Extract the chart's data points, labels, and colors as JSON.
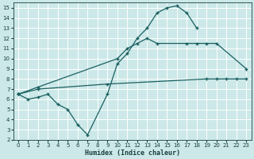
{
  "background_color": "#cce8e8",
  "grid_color": "#ffffff",
  "line_color": "#1a6060",
  "xlabel": "Humidex (Indice chaleur)",
  "xlim": [
    -0.5,
    23.5
  ],
  "ylim": [
    2,
    15.5
  ],
  "xticks": [
    0,
    1,
    2,
    3,
    4,
    5,
    6,
    7,
    8,
    9,
    10,
    11,
    12,
    13,
    14,
    15,
    16,
    17,
    18,
    19,
    20,
    21,
    22,
    23
  ],
  "yticks": [
    2,
    3,
    4,
    5,
    6,
    7,
    8,
    9,
    10,
    11,
    12,
    13,
    14,
    15
  ],
  "line1_x": [
    0,
    1,
    2,
    3,
    4,
    5,
    6,
    7,
    9,
    10,
    11,
    12,
    13,
    14,
    15,
    16,
    17,
    18
  ],
  "line1_y": [
    6.5,
    6.0,
    6.2,
    6.5,
    5.5,
    5.0,
    3.5,
    2.5,
    6.5,
    9.5,
    10.5,
    12.0,
    13.0,
    14.5,
    15.0,
    15.2,
    14.5,
    13.0
  ],
  "line2_x": [
    0,
    2,
    9,
    19,
    20,
    21,
    22,
    23
  ],
  "line2_y": [
    6.5,
    7.0,
    7.5,
    8.0,
    8.0,
    8.0,
    8.0,
    8.0
  ],
  "line3_x": [
    0,
    2,
    10,
    11,
    12,
    13,
    14,
    17,
    18,
    19,
    20,
    23
  ],
  "line3_y": [
    6.5,
    7.2,
    10.0,
    11.0,
    11.5,
    12.0,
    11.5,
    11.5,
    11.5,
    11.5,
    11.5,
    9.0
  ]
}
